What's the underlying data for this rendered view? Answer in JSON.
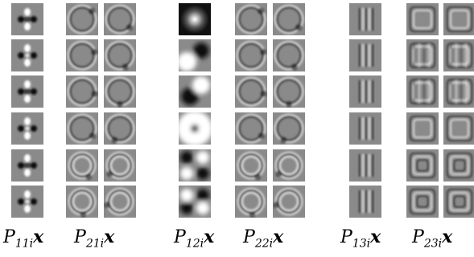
{
  "labels": {
    "p11": {
      "P": "P",
      "sub": "11i",
      "x": "x"
    },
    "p21": {
      "P": "P",
      "sub": "21i",
      "x": "x"
    },
    "p12": {
      "P": "P",
      "sub": "12i",
      "x": "x"
    },
    "p22": {
      "P": "P",
      "sub": "22i",
      "x": "x"
    },
    "p13": {
      "P": "P",
      "sub": "13i",
      "x": "x"
    },
    "p23": {
      "P": "P",
      "sub": "23i",
      "x": "x"
    }
  }
}
